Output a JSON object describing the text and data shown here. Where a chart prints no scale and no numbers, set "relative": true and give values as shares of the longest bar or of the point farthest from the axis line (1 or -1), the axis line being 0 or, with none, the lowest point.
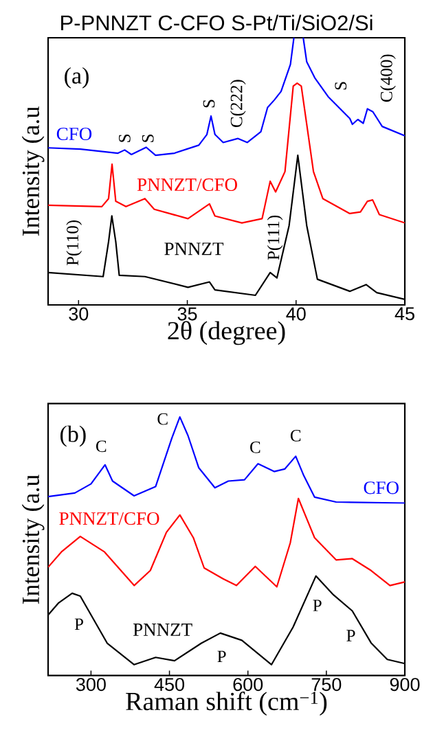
{
  "chart_data": [
    {
      "type": "line",
      "relative": true,
      "title": "P-PNNZT  C-CFO S-Pt/Ti/SiO2/Si",
      "xlabel": "2θ (degree)",
      "ylabel": "Intensity (a.u",
      "xlim": [
        28.6,
        45
      ],
      "xticks": [
        30,
        35,
        40,
        45
      ],
      "series": [
        {
          "name": "CFO",
          "color": "#0000ff",
          "x": [
            28.6,
            30.08,
            31.81,
            32.12,
            32.43,
            33.11,
            33.54,
            34.41,
            35.53,
            35.9,
            36.09,
            36.27,
            36.65,
            37.33,
            37.76,
            38.38,
            38.69,
            39.0,
            39.31,
            39.74,
            39.9,
            40.1,
            40.33,
            40.49,
            40.86,
            41.48,
            42.47,
            42.59,
            42.84,
            43.09,
            43.28,
            43.53,
            43.96,
            45.0
          ],
          "values": [
            0.588,
            0.583,
            0.568,
            0.58,
            0.563,
            0.59,
            0.56,
            0.568,
            0.598,
            0.638,
            0.707,
            0.638,
            0.608,
            0.623,
            0.608,
            0.648,
            0.739,
            0.767,
            0.799,
            0.9,
            1.0,
            null,
            1.0,
            0.91,
            0.85,
            0.779,
            0.698,
            0.676,
            0.694,
            0.68,
            0.734,
            0.723,
            0.668,
            0.633
          ]
        },
        {
          "name": "PNNZT/CFO",
          "color": "#ff0000",
          "x": [
            28.6,
            31.07,
            31.38,
            31.54,
            31.71,
            32.18,
            33.05,
            33.48,
            35.03,
            36.02,
            36.27,
            37.51,
            38.44,
            38.81,
            39.06,
            39.49,
            39.87,
            40.05,
            40.24,
            40.8,
            41.23,
            42.47,
            42.96,
            43.28,
            43.52,
            43.83,
            45.0
          ],
          "values": [
            0.373,
            0.368,
            0.398,
            0.527,
            0.388,
            0.368,
            0.398,
            0.358,
            0.323,
            0.378,
            0.333,
            0.307,
            0.323,
            0.463,
            0.423,
            0.499,
            0.819,
            0.83,
            0.819,
            0.499,
            0.398,
            0.342,
            0.348,
            0.388,
            0.393,
            0.338,
            0.307
          ]
        },
        {
          "name": "PNNZT",
          "color": "#000000",
          "x": [
            28.6,
            31.13,
            31.38,
            31.53,
            31.71,
            31.87,
            33.05,
            35.03,
            36.02,
            36.27,
            38.13,
            38.81,
            39.12,
            39.68,
            40.08,
            40.49,
            40.98,
            42.47,
            43.22,
            43.71,
            45.0
          ],
          "values": [
            0.121,
            0.106,
            0.237,
            0.333,
            0.237,
            0.111,
            0.106,
            0.066,
            0.086,
            0.056,
            0.036,
            0.121,
            0.101,
            0.297,
            0.56,
            0.297,
            0.096,
            0.051,
            0.076,
            0.046,
            0.021
          ]
        }
      ],
      "annotations": [
        "(a)",
        {
          "text": "S",
          "x": 32.12,
          "y": 0.58
        },
        {
          "text": "S",
          "x": 33.11,
          "y": 0.59
        },
        {
          "text": "S",
          "x": 36.09,
          "y": 0.707
        },
        {
          "text": "C(222)",
          "x": 37.33,
          "y": 0.623
        },
        {
          "text": "S",
          "x": 42.59,
          "y": 0.676
        },
        {
          "text": "C(400)",
          "x": 43.53,
          "y": 0.723
        },
        {
          "text": "P(110)",
          "x": 31.53,
          "y": 0.333
        },
        {
          "text": "P(111)",
          "x": 38.81,
          "y": 0.121
        }
      ]
    },
    {
      "type": "line",
      "relative": true,
      "xlabel": "Raman shift  (cm$^{−1}$)",
      "ylabel": "Intensity (a.u",
      "xlim": [
        218,
        900
      ],
      "xticks": [
        300,
        450,
        600,
        750,
        900
      ],
      "series": [
        {
          "name": "CFO",
          "color": "#0000ff",
          "x": [
            218,
            269.1,
            300,
            326.8,
            341.2,
            382.4,
            423.6,
            454.5,
            469.9,
            485.4,
            505.9,
            536.9,
            562.6,
            593.5,
            619.3,
            650.2,
            670.7,
            691.4,
            706.8,
            727.4,
            768.6,
            900
          ],
          "values": [
            0.692,
            0.706,
            0.741,
            0.815,
            0.752,
            0.695,
            0.731,
            0.918,
            1.0,
            0.928,
            0.804,
            0.726,
            0.752,
            0.757,
            0.819,
            0.789,
            0.799,
            0.848,
            0.773,
            0.69,
            0.671,
            0.667
          ]
        },
        {
          "name": "PNNZT/CFO",
          "color": "#ff0000",
          "x": [
            218,
            243.4,
            279.5,
            325.8,
            382.5,
            413.4,
            444.2,
            469.9,
            495.7,
            516.3,
            552.4,
            578.1,
            614.1,
            655.3,
            681,
            696.5,
            727.4,
            768.6,
            799.5,
            835.5,
            871.6,
            900
          ],
          "values": [
            0.419,
            0.478,
            0.538,
            0.478,
            0.348,
            0.406,
            0.554,
            0.621,
            0.533,
            0.416,
            0.374,
            0.348,
            0.422,
            0.343,
            0.513,
            0.685,
            0.533,
            0.447,
            0.452,
            0.406,
            0.348,
            0.362
          ]
        },
        {
          "name": "PNNZT",
          "color": "#000000",
          "x": [
            218,
            238.2,
            264,
            279.5,
            330.9,
            382.5,
            423.6,
            459.7,
            511.2,
            547.3,
            588.4,
            645.1,
            686.3,
            730.1,
            763.5,
            799.5,
            835.5,
            866.5,
            900
          ],
          "values": [
            0.234,
            0.281,
            0.318,
            0.307,
            0.125,
            0.042,
            0.07,
            0.057,
            0.125,
            0.164,
            0.136,
            0.042,
            0.187,
            0.385,
            0.312,
            0.25,
            0.126,
            0.062,
            0.046
          ]
        }
      ],
      "annotations": [
        "(b)",
        {
          "text": "C",
          "x": 326.8,
          "y": 0.815
        },
        {
          "text": "C",
          "x": 469.9,
          "y": 1.0
        },
        {
          "text": "C",
          "x": 619.3,
          "y": 0.819
        },
        {
          "text": "C",
          "x": 691.4,
          "y": 0.848
        },
        {
          "text": "P",
          "x": 264,
          "y": 0.318
        },
        {
          "text": "P",
          "x": 547.3,
          "y": 0.164
        },
        {
          "text": "P",
          "x": 730.1,
          "y": 0.385
        },
        {
          "text": "P",
          "x": 799.5,
          "y": 0.25
        }
      ]
    }
  ]
}
